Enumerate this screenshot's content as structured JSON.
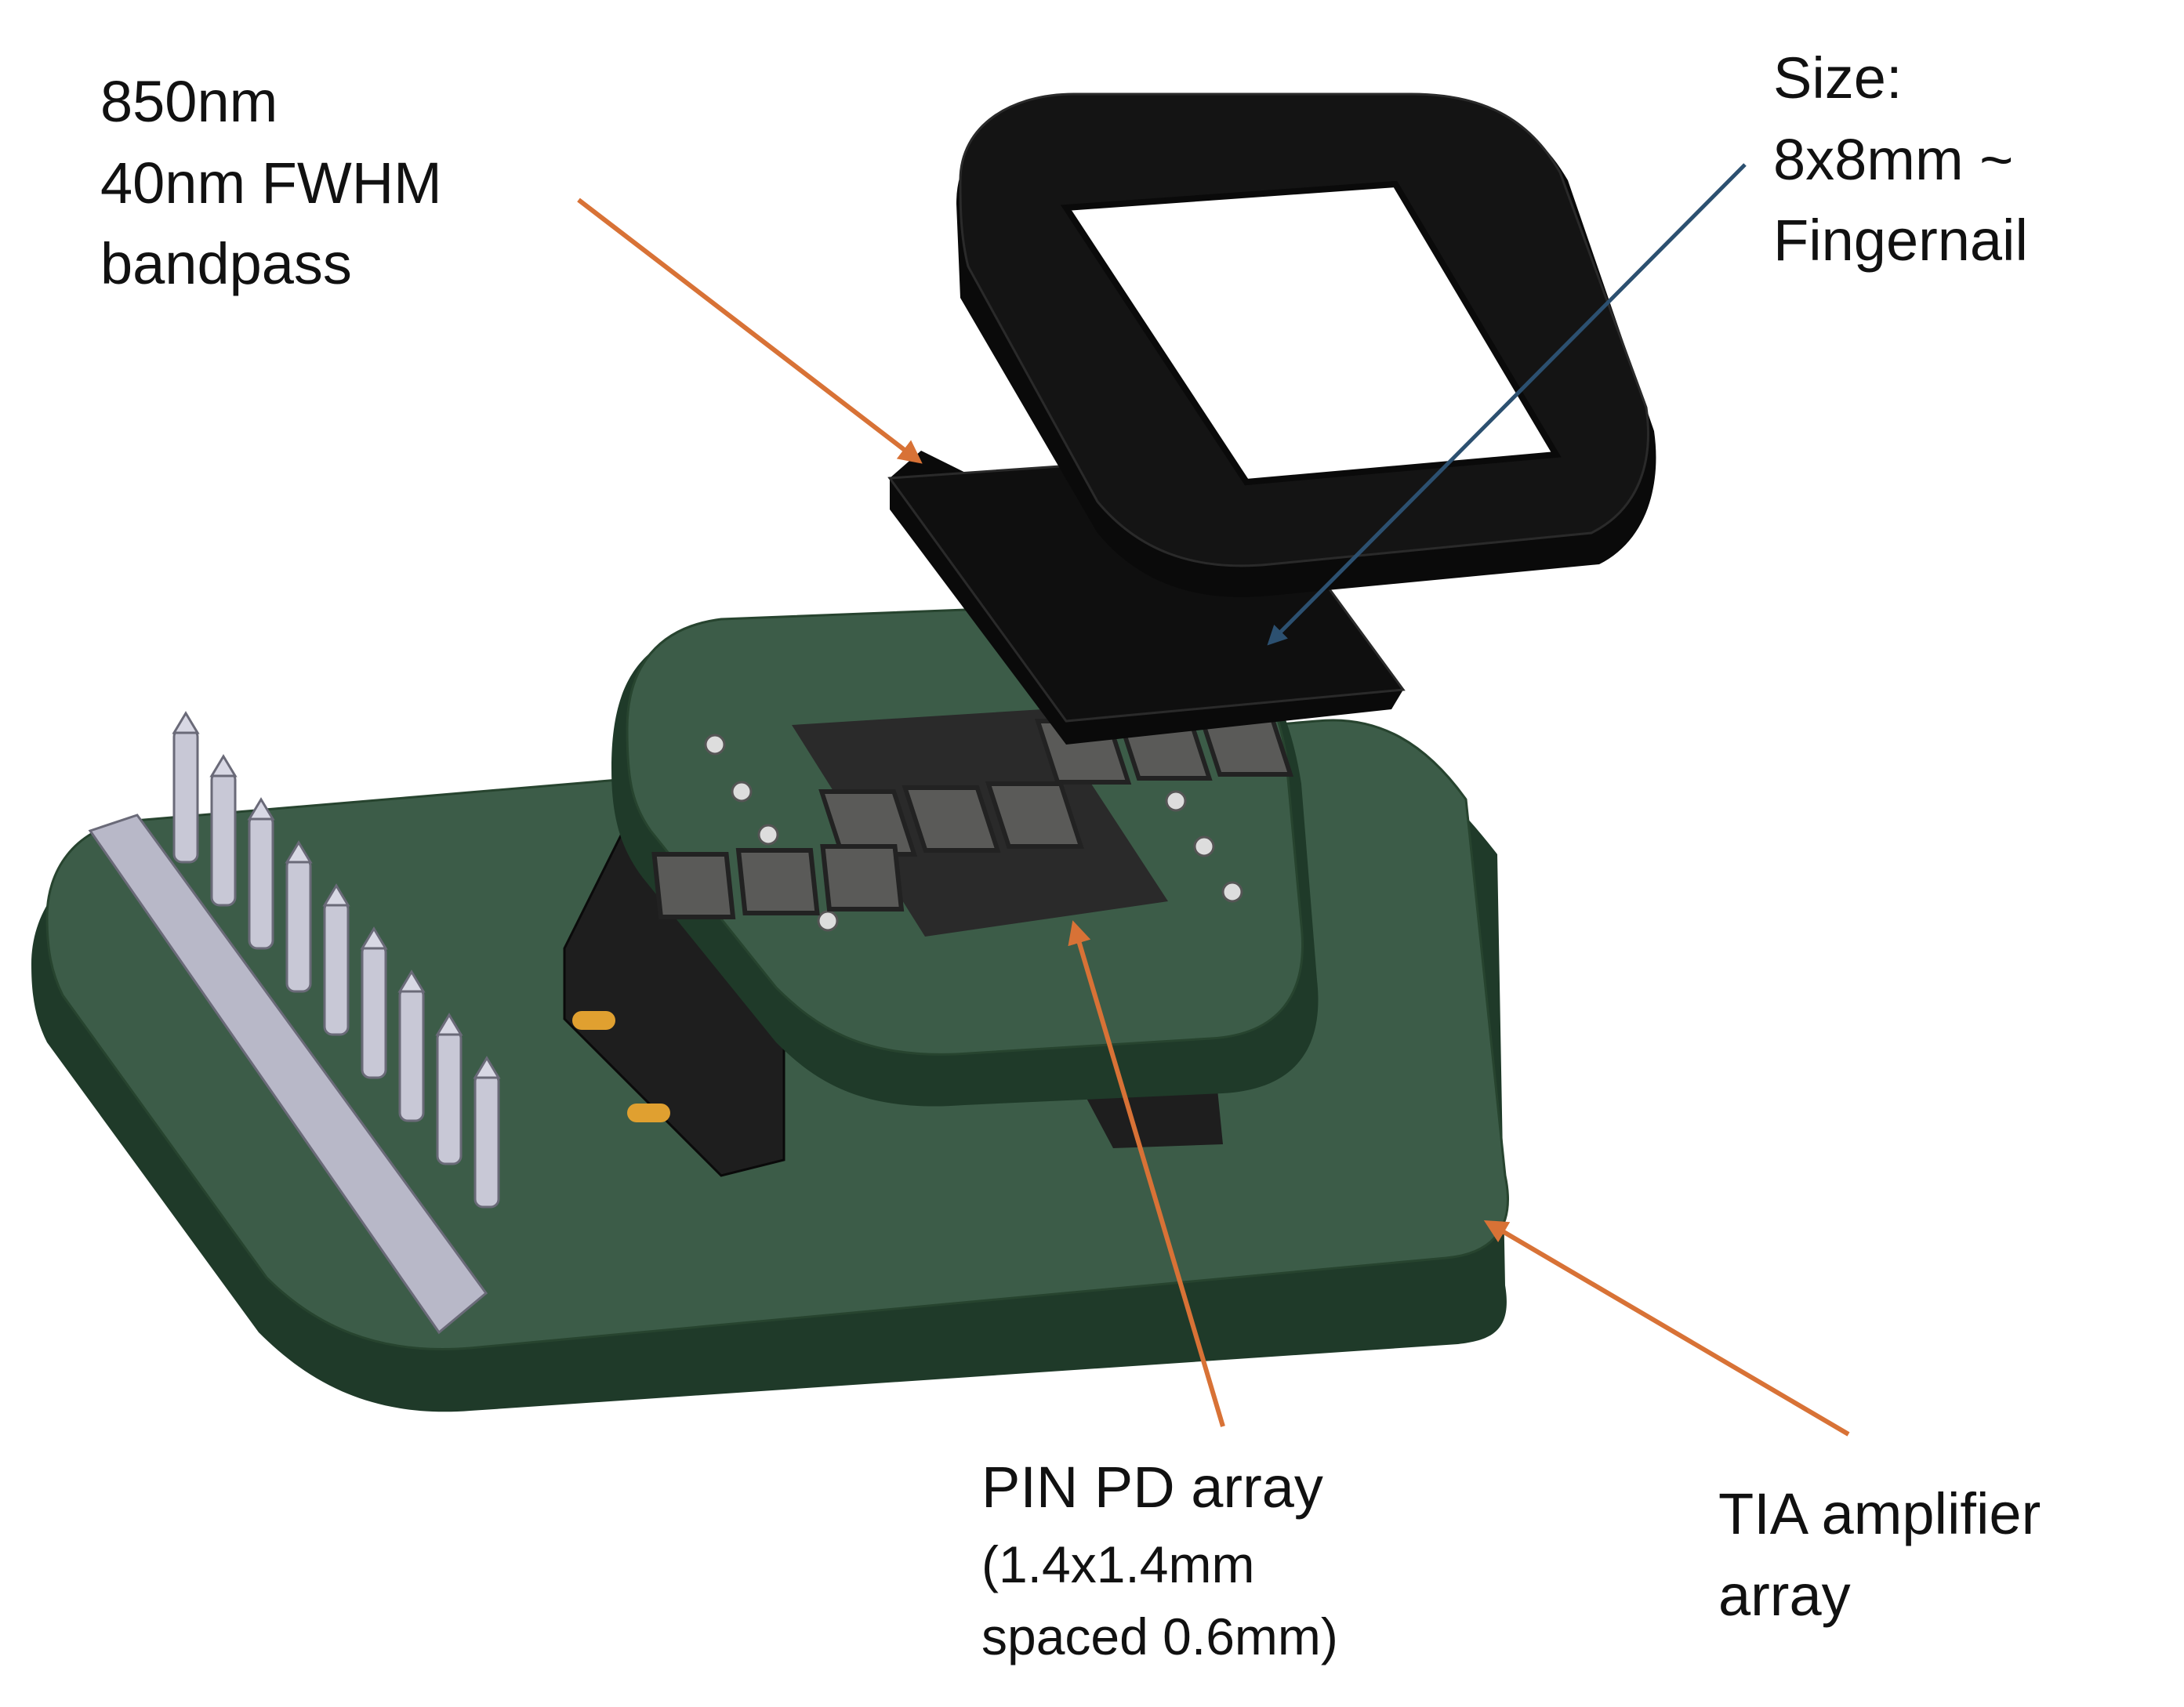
{
  "labels": {
    "filter": [
      "850nm",
      "40nm FWHM",
      "bandpass"
    ],
    "size": [
      "Size:",
      "8x8mm ~",
      "Fingernail"
    ],
    "pd_array": {
      "title": "PIN PD array",
      "details": [
        "(1.4x1.4mm",
        "spaced 0.6mm)"
      ]
    },
    "tia": [
      "TIA amplifier",
      "array"
    ]
  },
  "colors": {
    "pcb": "#3c5c48",
    "pcb_dark": "#2a4a36",
    "pcb_edge": "#1f3a29",
    "pd_pixel": "#5a5a58",
    "filter": "#0f0f0f",
    "frame": "#111111",
    "pin": "#c8c8d6",
    "header": "#1e1e1e",
    "pad": "#e0a030",
    "arrow_orange": "#d87236",
    "arrow_blue": "#2c5070"
  }
}
